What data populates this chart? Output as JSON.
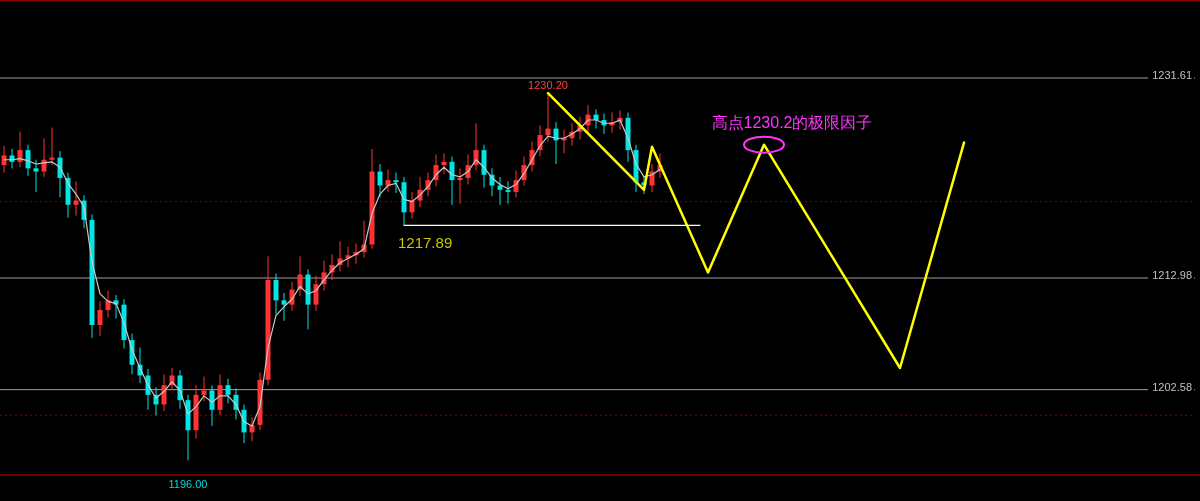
{
  "chart_data": {
    "type": "candlestick",
    "tick_labels": "y",
    "grid": "y",
    "ylim": [
      1194.63,
      1238.88
    ],
    "yticks": [
      1231.61,
      1212.98,
      1202.58
    ],
    "categories": [
      null,
      null,
      null,
      null,
      null,
      null,
      null,
      null,
      null,
      null,
      null,
      null,
      null,
      null,
      null,
      null,
      null,
      null,
      null,
      null,
      null,
      null,
      null,
      null,
      null,
      null,
      null,
      null,
      null,
      null,
      null,
      null,
      null,
      null,
      null,
      null,
      null,
      null,
      null,
      null,
      null,
      null,
      null,
      null,
      null,
      null,
      null,
      null,
      null,
      null,
      null,
      null,
      null,
      null,
      null,
      null,
      null,
      null,
      null,
      null,
      null,
      null,
      null,
      null,
      null,
      null,
      null,
      null,
      null,
      null,
      null,
      null,
      null,
      null,
      null,
      null,
      null,
      null,
      null,
      null,
      null,
      null,
      null,
      null,
      null,
      null,
      null,
      null,
      null,
      null,
      null,
      null,
      null,
      null,
      null,
      null,
      null,
      null,
      null,
      null,
      null,
      null,
      null,
      null,
      null,
      null,
      null,
      null,
      null,
      null,
      null,
      null,
      null,
      null,
      null,
      null,
      null,
      null,
      null,
      null,
      null,
      null,
      null,
      null,
      null,
      null,
      null,
      null,
      null,
      null,
      null,
      null,
      null,
      null,
      null,
      null,
      null,
      null,
      null,
      null,
      null,
      null,
      null,
      null,
      null,
      null,
      null,
      null,
      null,
      null
    ],
    "ohlc": [
      [
        1223.5,
        1225.3,
        1222.8,
        1224.4
      ],
      [
        1224.4,
        1225.0,
        1223.2,
        1223.8
      ],
      [
        1223.8,
        1226.6,
        1223.3,
        1224.9
      ],
      [
        1224.9,
        1225.4,
        1222.5,
        1223.2
      ],
      [
        1223.2,
        1224.0,
        1221.0,
        1222.9
      ],
      [
        1222.9,
        1226.0,
        1222.4,
        1224.0
      ],
      [
        1224.0,
        1227.0,
        1223.5,
        1224.2
      ],
      [
        1224.2,
        1224.8,
        1220.5,
        1222.3
      ],
      [
        1222.3,
        1222.8,
        1218.6,
        1219.8
      ],
      [
        1219.8,
        1222.0,
        1218.8,
        1220.2
      ],
      [
        1220.2,
        1220.7,
        1217.6,
        1218.4
      ],
      [
        1218.4,
        1218.9,
        1207.4,
        1208.6
      ],
      [
        1208.6,
        1210.8,
        1207.6,
        1210.0
      ],
      [
        1210.0,
        1211.8,
        1209.3,
        1210.9
      ],
      [
        1210.9,
        1211.4,
        1209.2,
        1210.5
      ],
      [
        1210.5,
        1211.0,
        1206.4,
        1207.2
      ],
      [
        1207.2,
        1207.8,
        1204.0,
        1204.9
      ],
      [
        1204.9,
        1206.5,
        1203.2,
        1203.9
      ],
      [
        1203.9,
        1204.5,
        1200.7,
        1202.1
      ],
      [
        1202.1,
        1202.8,
        1200.2,
        1201.2
      ],
      [
        1201.2,
        1204.0,
        1200.6,
        1203.0
      ],
      [
        1203.0,
        1204.6,
        1202.5,
        1203.9
      ],
      [
        1203.9,
        1204.4,
        1200.8,
        1201.6
      ],
      [
        1201.6,
        1202.1,
        1196.0,
        1198.8
      ],
      [
        1198.8,
        1203.0,
        1198.0,
        1202.1
      ],
      [
        1202.1,
        1203.8,
        1201.5,
        1202.5
      ],
      [
        1202.5,
        1203.0,
        1199.2,
        1200.7
      ],
      [
        1200.7,
        1204.0,
        1200.2,
        1203.0
      ],
      [
        1203.0,
        1203.6,
        1201.3,
        1202.1
      ],
      [
        1202.1,
        1202.7,
        1199.8,
        1200.7
      ],
      [
        1200.7,
        1201.2,
        1197.6,
        1198.6
      ],
      [
        1198.6,
        1200.0,
        1197.8,
        1199.3
      ],
      [
        1199.3,
        1204.2,
        1198.8,
        1203.5
      ],
      [
        1203.5,
        1215.0,
        1203.0,
        1212.8
      ],
      [
        1212.8,
        1213.4,
        1209.6,
        1210.9
      ],
      [
        1210.9,
        1211.6,
        1209.0,
        1210.5
      ],
      [
        1210.5,
        1212.6,
        1209.9,
        1211.9
      ],
      [
        1211.9,
        1215.0,
        1211.3,
        1213.3
      ],
      [
        1213.3,
        1213.8,
        1208.2,
        1210.5
      ],
      [
        1210.5,
        1213.2,
        1209.9,
        1212.4
      ],
      [
        1212.4,
        1214.6,
        1211.8,
        1213.5
      ],
      [
        1213.5,
        1215.2,
        1212.8,
        1214.2
      ],
      [
        1214.2,
        1216.4,
        1213.6,
        1214.8
      ],
      [
        1214.8,
        1215.9,
        1214.0,
        1215.1
      ],
      [
        1215.1,
        1216.2,
        1214.3,
        1215.4
      ],
      [
        1215.4,
        1218.3,
        1214.9,
        1216.1
      ],
      [
        1216.1,
        1225.0,
        1215.7,
        1222.9
      ],
      [
        1222.9,
        1223.6,
        1220.5,
        1221.6
      ],
      [
        1221.6,
        1223.1,
        1221.0,
        1222.1
      ],
      [
        1222.1,
        1222.8,
        1220.9,
        1221.9
      ],
      [
        1221.9,
        1222.4,
        1217.9,
        1219.1
      ],
      [
        1219.1,
        1221.0,
        1218.5,
        1220.2
      ],
      [
        1220.2,
        1222.4,
        1219.6,
        1221.2
      ],
      [
        1221.2,
        1222.8,
        1220.6,
        1222.1
      ],
      [
        1222.1,
        1224.5,
        1221.5,
        1223.5
      ],
      [
        1223.5,
        1224.6,
        1222.7,
        1223.8
      ],
      [
        1223.8,
        1224.3,
        1219.8,
        1222.1
      ],
      [
        1222.1,
        1223.2,
        1219.9,
        1222.3
      ],
      [
        1222.3,
        1224.5,
        1221.7,
        1223.5
      ],
      [
        1223.5,
        1227.4,
        1223.0,
        1224.9
      ],
      [
        1224.9,
        1225.4,
        1221.4,
        1222.6
      ],
      [
        1222.6,
        1223.2,
        1220.6,
        1221.6
      ],
      [
        1221.6,
        1222.4,
        1219.8,
        1221.2
      ],
      [
        1221.2,
        1222.0,
        1219.9,
        1221.0
      ],
      [
        1221.0,
        1223.0,
        1220.5,
        1222.1
      ],
      [
        1222.1,
        1224.3,
        1221.6,
        1223.5
      ],
      [
        1223.5,
        1225.7,
        1222.9,
        1224.9
      ],
      [
        1224.9,
        1227.2,
        1224.3,
        1226.3
      ],
      [
        1226.3,
        1230.2,
        1225.7,
        1226.9
      ],
      [
        1226.9,
        1227.5,
        1223.6,
        1225.8
      ],
      [
        1225.8,
        1226.8,
        1224.6,
        1226.0
      ],
      [
        1226.0,
        1227.4,
        1225.3,
        1226.6
      ],
      [
        1226.6,
        1228.0,
        1225.9,
        1227.2
      ],
      [
        1227.2,
        1229.1,
        1226.6,
        1228.2
      ],
      [
        1228.2,
        1228.7,
        1226.9,
        1227.7
      ],
      [
        1227.7,
        1228.3,
        1226.4,
        1227.2
      ],
      [
        1227.2,
        1228.4,
        1226.5,
        1227.5
      ],
      [
        1227.5,
        1228.6,
        1226.8,
        1227.9
      ],
      [
        1227.9,
        1228.4,
        1223.8,
        1224.9
      ],
      [
        1224.9,
        1225.4,
        1221.0,
        1221.9
      ],
      [
        1221.9,
        1222.5,
        1220.8,
        1221.6
      ],
      [
        1221.6,
        1223.6,
        1221.0,
        1222.9
      ],
      [
        1222.9,
        1224.6,
        1222.3,
        1223.5
      ],
      null,
      null,
      null,
      null,
      null,
      null,
      null,
      null,
      null,
      null,
      null,
      null,
      null,
      null,
      null,
      null,
      null,
      null,
      null,
      null,
      null,
      null,
      null,
      null,
      null,
      null,
      null,
      null,
      null,
      null,
      null,
      null,
      null,
      null,
      null,
      null,
      null,
      null,
      null,
      null,
      null,
      null,
      null,
      null,
      null,
      null,
      null,
      null,
      null,
      null,
      null,
      null,
      null,
      null,
      null,
      null,
      null,
      null,
      null,
      null,
      null,
      null,
      null,
      null,
      null,
      null,
      null
    ],
    "colors": [
      "#ff3333",
      "#00e5e5",
      "#ff3333",
      "#00e5e5",
      "#00e5e5",
      "#ff3333",
      "#ff3333",
      "#00e5e5",
      "#00e5e5",
      "#ff3333",
      "#00e5e5",
      "#00e5e5",
      "#ff3333",
      "#ff3333",
      "#00e5e5",
      "#00e5e5",
      "#00e5e5",
      "#00e5e5",
      "#00e5e5",
      "#00e5e5",
      "#ff3333",
      "#ff3333",
      "#00e5e5",
      "#00e5e5",
      "#ff3333",
      "#ff3333",
      "#00e5e5",
      "#ff3333",
      "#00e5e5",
      "#00e5e5",
      "#00e5e5",
      "#ff3333",
      "#ff3333",
      "#ff3333",
      "#00e5e5",
      "#00e5e5",
      "#ff3333",
      "#ff3333",
      "#00e5e5",
      "#ff3333",
      "#ff3333",
      "#ff3333",
      "#ff3333",
      "#ff3333",
      "#ff3333",
      "#ff3333",
      "#ff3333",
      "#00e5e5",
      "#ff3333",
      "#00e5e5",
      "#00e5e5",
      "#ff3333",
      "#ff3333",
      "#ff3333",
      "#ff3333",
      "#ff3333",
      "#00e5e5",
      "#ff3333",
      "#ff3333",
      "#ff3333",
      "#00e5e5",
      "#00e5e5",
      "#00e5e5",
      "#00e5e5",
      "#ff3333",
      "#ff3333",
      "#ff3333",
      "#ff3333",
      "#ff3333",
      "#00e5e5",
      "#ff3333",
      "#ff3333",
      "#ff3333",
      "#ff3333",
      "#00e5e5",
      "#00e5e5",
      "#ff3333",
      "#ff3333",
      "#00e5e5",
      "#00e5e5",
      "#00e5e5",
      "#ff3333",
      "#ff3333",
      null,
      null,
      null,
      null,
      null,
      null,
      null,
      null,
      null,
      null,
      null,
      null,
      null,
      null,
      null,
      null,
      null,
      null,
      null,
      null,
      null,
      null,
      null,
      null,
      null,
      null,
      null,
      null,
      null,
      null,
      null,
      null,
      null,
      null,
      null,
      null,
      null,
      null,
      null,
      null,
      null,
      null,
      null,
      null,
      null,
      null,
      null,
      null,
      null,
      null,
      null,
      null,
      null,
      null,
      null,
      null,
      null,
      null,
      null,
      null,
      null,
      null,
      null,
      null,
      null,
      null,
      null
    ],
    "series": [
      {
        "type": "line",
        "color": "#c8c8c8",
        "values": [
          1224.0,
          1224.0,
          1224.1,
          1223.9,
          1223.6,
          1223.7,
          1223.8,
          1223.3,
          1221.8,
          1220.8,
          1219.6,
          1214.5,
          1211.5,
          1210.8,
          1210.6,
          1208.8,
          1206.3,
          1204.6,
          1203.0,
          1201.8,
          1202.4,
          1203.3,
          1202.5,
          1200.3,
          1201.0,
          1202.0,
          1201.4,
          1202.0,
          1202.0,
          1201.2,
          1199.6,
          1199.2,
          1201.0,
          1206.5,
          1209.5,
          1210.3,
          1211.0,
          1212.2,
          1211.5,
          1211.8,
          1212.8,
          1213.7,
          1214.4,
          1214.8,
          1215.2,
          1215.7,
          1219.0,
          1220.8,
          1221.6,
          1221.8,
          1220.3,
          1220.1,
          1220.7,
          1221.5,
          1222.6,
          1223.3,
          1222.6,
          1222.4,
          1222.9,
          1224.0,
          1223.3,
          1222.3,
          1221.7,
          1221.3,
          1221.7,
          1222.7,
          1224.0,
          1225.3,
          1226.2,
          1226.0,
          1226.0,
          1226.4,
          1226.9,
          1227.7,
          1227.7,
          1227.4,
          1227.4,
          1227.7,
          1226.0,
          1223.6,
          1222.4,
          1222.6,
          1223.1,
          null,
          null,
          null,
          null,
          null,
          null,
          null,
          null,
          null,
          null,
          null,
          null,
          null,
          null,
          null,
          null,
          null,
          null,
          null,
          null,
          null,
          null,
          null,
          null,
          null,
          null,
          null,
          null,
          null,
          null,
          null,
          null,
          null,
          null,
          null,
          null,
          null,
          null,
          null,
          null,
          null,
          null,
          null,
          null,
          null,
          null,
          null,
          null,
          null,
          null,
          null,
          null,
          null,
          null,
          null,
          null,
          null,
          null,
          null,
          null,
          null,
          null,
          null,
          null,
          null,
          null,
          null
        ]
      },
      {
        "type": "line",
        "color": "#ffff00",
        "values": [
          null,
          null,
          null,
          null,
          null,
          null,
          null,
          null,
          null,
          null,
          null,
          null,
          null,
          null,
          null,
          null,
          null,
          null,
          null,
          null,
          null,
          null,
          null,
          null,
          null,
          null,
          null,
          null,
          null,
          null,
          null,
          null,
          null,
          null,
          null,
          null,
          null,
          null,
          null,
          null,
          null,
          null,
          null,
          null,
          null,
          null,
          null,
          null,
          null,
          null,
          null,
          null,
          null,
          null,
          null,
          null,
          null,
          null,
          null,
          null,
          null,
          null,
          null,
          null,
          null,
          null,
          null,
          null,
          1230.2,
          null,
          null,
          null,
          null,
          null,
          null,
          null,
          null,
          null,
          null,
          null,
          1221.2,
          1225.2,
          null,
          null,
          null,
          null,
          null,
          null,
          1213.5,
          null,
          null,
          null,
          null,
          null,
          null,
          1225.4,
          null,
          null,
          null,
          null,
          null,
          null,
          null,
          null,
          null,
          null,
          null,
          null,
          null,
          null,
          null,
          null,
          1204.6,
          null,
          null,
          null,
          null,
          null,
          null,
          null,
          1225.6,
          null,
          null,
          null,
          null,
          null,
          null,
          null,
          null,
          null,
          null,
          null,
          null,
          null,
          null,
          null,
          null,
          null,
          null,
          null,
          null,
          null,
          null,
          null,
          null,
          null,
          null,
          null,
          null,
          null
        ]
      },
      {
        "type": "line",
        "color": "#ffffff",
        "values": [
          null,
          null,
          null,
          null,
          null,
          null,
          null,
          null,
          null,
          null,
          null,
          null,
          null,
          null,
          null,
          null,
          null,
          null,
          null,
          null,
          null,
          null,
          null,
          null,
          null,
          null,
          null,
          null,
          null,
          null,
          null,
          null,
          null,
          null,
          null,
          null,
          null,
          null,
          null,
          null,
          null,
          null,
          null,
          null,
          null,
          null,
          null,
          null,
          null,
          null,
          1217.89,
          null,
          null,
          null,
          null,
          null,
          null,
          null,
          null,
          null,
          null,
          null,
          null,
          null,
          null,
          null,
          null,
          null,
          null,
          null,
          null,
          null,
          null,
          null,
          null,
          null,
          null,
          null,
          null,
          null,
          null,
          null,
          null,
          null,
          null,
          null,
          null,
          1217.89,
          null,
          null,
          null,
          null,
          null,
          null,
          null,
          null,
          null,
          null,
          null,
          null,
          null,
          null,
          null,
          null,
          null,
          null,
          null,
          null,
          null,
          null,
          null,
          null,
          null,
          null,
          null,
          null,
          null,
          null,
          null,
          null,
          null,
          null,
          null,
          null,
          null,
          null,
          null,
          null,
          null,
          null,
          null,
          null,
          null,
          null,
          null,
          null,
          null,
          null,
          null,
          null,
          null,
          null,
          null,
          null,
          null,
          null,
          null,
          null,
          null,
          null
        ]
      }
    ],
    "ref_lines": [
      {
        "axis": "y",
        "value": 1220.1,
        "color": "#8b0000",
        "line_style": "dotted"
      },
      {
        "axis": "y",
        "value": 1200.2,
        "color": "#8b0000",
        "line_style": "dotted"
      }
    ],
    "annotations": [
      "1230.20",
      "1196.00",
      "1217.89",
      "高点1230.2的极限因子"
    ]
  }
}
